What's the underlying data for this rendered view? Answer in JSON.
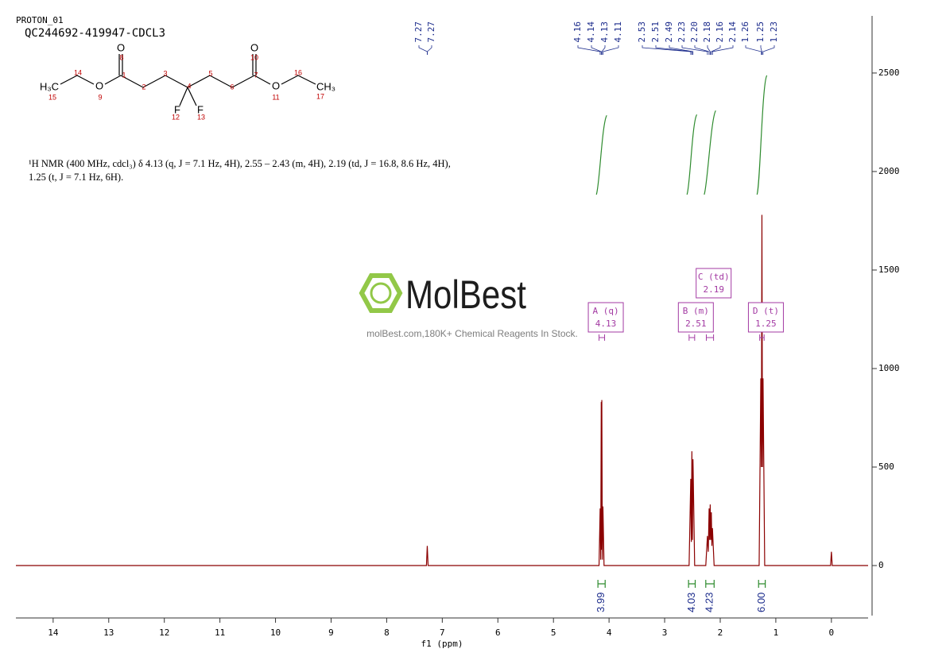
{
  "chart_data": {
    "type": "line",
    "title": "PROTON_01",
    "subtitle": "QC244692-419947-CDCL3",
    "xlabel": "f1 (ppm)",
    "color": "#8b0000",
    "x": [
      14.67,
      7.285,
      7.27,
      7.255,
      4.18,
      4.16,
      4.15,
      4.14,
      4.135,
      4.13,
      4.12,
      4.11,
      4.09,
      2.56,
      2.53,
      2.52,
      2.51,
      2.5,
      2.49,
      2.46,
      2.26,
      2.23,
      2.215,
      2.2,
      2.19,
      2.18,
      2.17,
      2.16,
      2.15,
      2.14,
      2.11,
      1.3,
      1.27,
      1.26,
      1.25,
      1.24,
      1.23,
      1.2,
      0.015,
      0,
      -0.015,
      -0.66
    ],
    "values": [
      0,
      0,
      100,
      0,
      0,
      290,
      30,
      830,
      80,
      840,
      30,
      300,
      0,
      0,
      440,
      120,
      580,
      130,
      540,
      0,
      0,
      150,
      70,
      290,
      130,
      310,
      130,
      270,
      100,
      190,
      0,
      0,
      950,
      500,
      1780,
      500,
      950,
      0,
      0,
      70,
      0,
      0
    ],
    "xlim": [
      14.67,
      -0.66
    ],
    "ylim": [
      -266,
      2790
    ],
    "xticks": [
      14,
      13,
      12,
      11,
      10,
      9,
      8,
      7,
      6,
      5,
      4,
      3,
      2,
      1,
      0
    ],
    "yticks": [
      0,
      500,
      1000,
      1500,
      2000,
      2500
    ],
    "peak_picks": [
      7.27,
      7.27,
      4.16,
      4.14,
      4.13,
      4.11,
      2.53,
      2.51,
      2.49,
      2.23,
      {
        "value": 2.2,
        "label": "2.20"
      },
      2.18,
      2.16,
      2.14,
      1.26,
      1.25,
      1.23
    ],
    "integrals": {
      "ranges": [
        [
          4.2,
          4.07
        ],
        [
          2.57,
          2.45
        ],
        [
          2.26,
          2.11
        ],
        [
          1.31,
          1.19
        ]
      ],
      "values": [
        3.99,
        4.03,
        4.23,
        6
      ],
      "value_labels": [
        "3.99",
        "4.03",
        "4.23",
        "6.00"
      ],
      "color": "#2e8b2e"
    },
    "multiplets": [
      {
        "label": "A (q)",
        "value": 4.13,
        "range": [
          4.18,
          4.08
        ]
      },
      {
        "label": "B (m)",
        "value": 2.51,
        "range": [
          2.56,
          2.46
        ]
      },
      {
        "label": "C (td)",
        "value": 2.19,
        "range": [
          2.25,
          2.12
        ]
      },
      {
        "label": "D (t)",
        "value": 1.25,
        "range": [
          1.29,
          1.21
        ]
      }
    ],
    "description": "¹H NMR (400 MHz, cdcl₃) δ 4.13 (q, J = 7.1 Hz, 4H), 2.55 – 2.43 (m, 4H), 2.19 (td, J = 16.8, 8.6 Hz, 4H), 1.25 (t, J = 7.1 Hz, 6H).",
    "structure": {
      "atoms": [
        "H₃C",
        "15",
        "14",
        "O",
        "9",
        "1",
        "O",
        "8",
        "2",
        "3",
        "4",
        "F",
        "12",
        "F",
        "13",
        "5",
        "6",
        "7",
        "O",
        "10",
        "O",
        "11",
        "16",
        "CH₃",
        "17"
      ]
    },
    "watermark": {
      "brand": "MolBest",
      "tagline": "molBest.com,180K+ Chemical Reagents In Stock."
    }
  }
}
